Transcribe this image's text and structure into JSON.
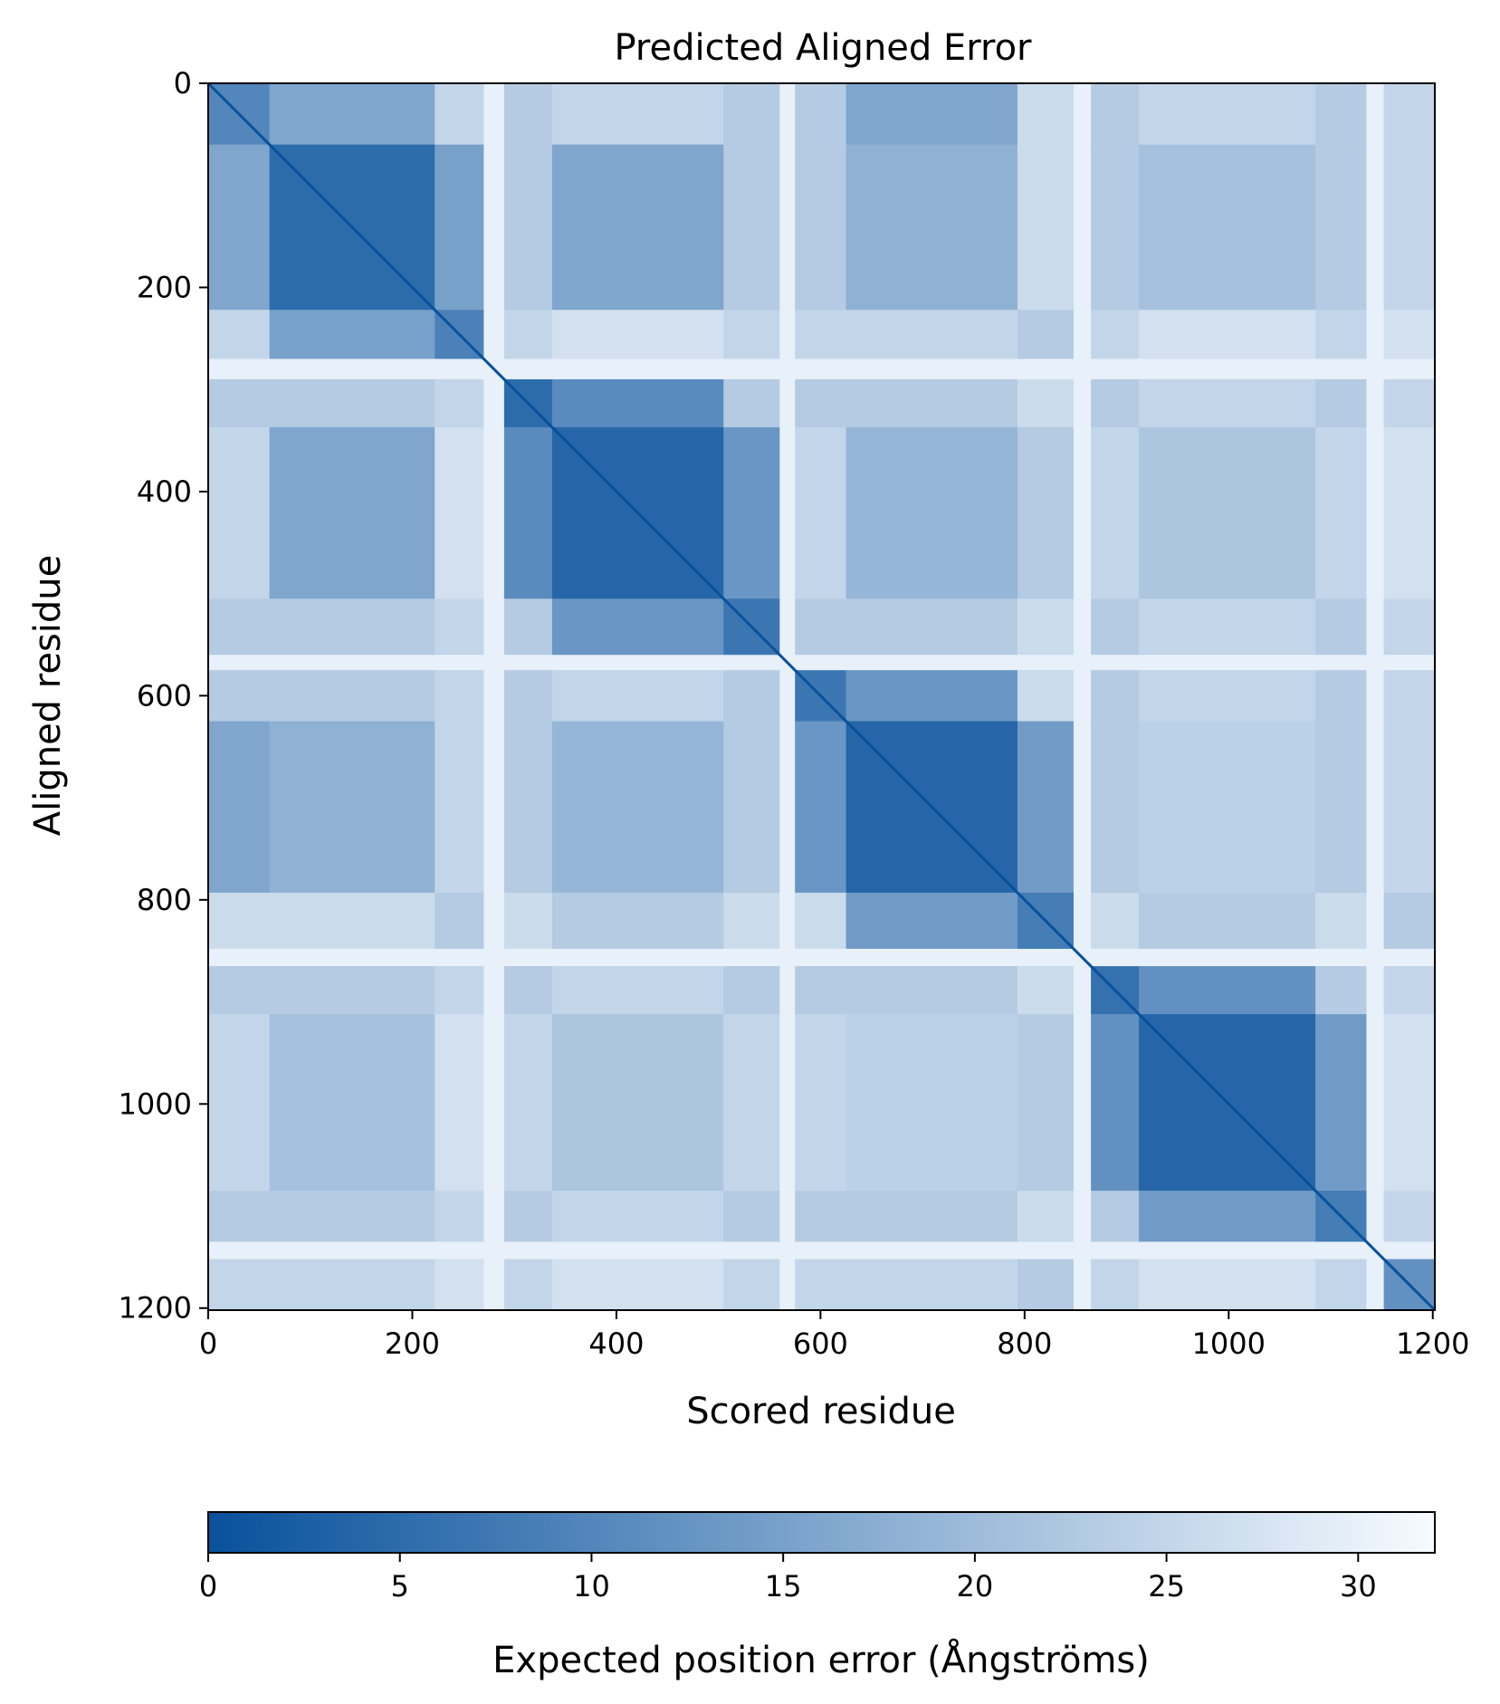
{
  "chart_data": {
    "type": "heatmap",
    "title": "Predicted Aligned Error",
    "xlabel": "Scored residue",
    "ylabel": "Aligned residue",
    "n_residues": 1202,
    "xlim": [
      0,
      1202
    ],
    "ylim": [
      1202,
      0
    ],
    "x_ticks": [
      0,
      200,
      400,
      600,
      800,
      1000,
      1200
    ],
    "y_ticks": [
      0,
      200,
      400,
      600,
      800,
      1000,
      1200
    ],
    "colorbar": {
      "label": "Expected position error (Ångströms)",
      "min": 0,
      "max": 32,
      "ticks": [
        0,
        5,
        10,
        15,
        20,
        25,
        30
      ],
      "colors": [
        "#08519c",
        "#f7fbff"
      ]
    },
    "segments": [
      {
        "start": 0,
        "end": 60,
        "error": 10
      },
      {
        "start": 60,
        "end": 222,
        "error": 5
      },
      {
        "start": 222,
        "end": 270,
        "error": 9
      },
      {
        "start": 270,
        "end": 290,
        "error": 29
      },
      {
        "start": 290,
        "end": 337,
        "error": 5
      },
      {
        "start": 337,
        "end": 505,
        "error": 4
      },
      {
        "start": 505,
        "end": 560,
        "error": 7
      },
      {
        "start": 560,
        "end": 575,
        "error": 29
      },
      {
        "start": 575,
        "end": 625,
        "error": 7
      },
      {
        "start": 625,
        "end": 793,
        "error": 4
      },
      {
        "start": 793,
        "end": 848,
        "error": 8
      },
      {
        "start": 848,
        "end": 865,
        "error": 29
      },
      {
        "start": 865,
        "end": 912,
        "error": 6
      },
      {
        "start": 912,
        "end": 1085,
        "error": 4
      },
      {
        "start": 1085,
        "end": 1135,
        "error": 8
      },
      {
        "start": 1135,
        "end": 1152,
        "error": 29
      },
      {
        "start": 1152,
        "end": 1202,
        "error": 12
      }
    ],
    "off_diagonal_blocks": [
      {
        "rows": [
          60,
          222
        ],
        "cols": [
          337,
          505
        ],
        "error": 16
      },
      {
        "rows": [
          60,
          222
        ],
        "cols": [
          625,
          793
        ],
        "error": 18
      },
      {
        "rows": [
          60,
          222
        ],
        "cols": [
          912,
          1085
        ],
        "error": 21
      },
      {
        "rows": [
          337,
          505
        ],
        "cols": [
          625,
          793
        ],
        "error": 19
      },
      {
        "rows": [
          337,
          505
        ],
        "cols": [
          912,
          1085
        ],
        "error": 22
      },
      {
        "rows": [
          625,
          793
        ],
        "cols": [
          912,
          1085
        ],
        "error": 24
      },
      {
        "rows": [
          0,
          60
        ],
        "cols": [
          625,
          793
        ],
        "error": 16
      }
    ]
  }
}
